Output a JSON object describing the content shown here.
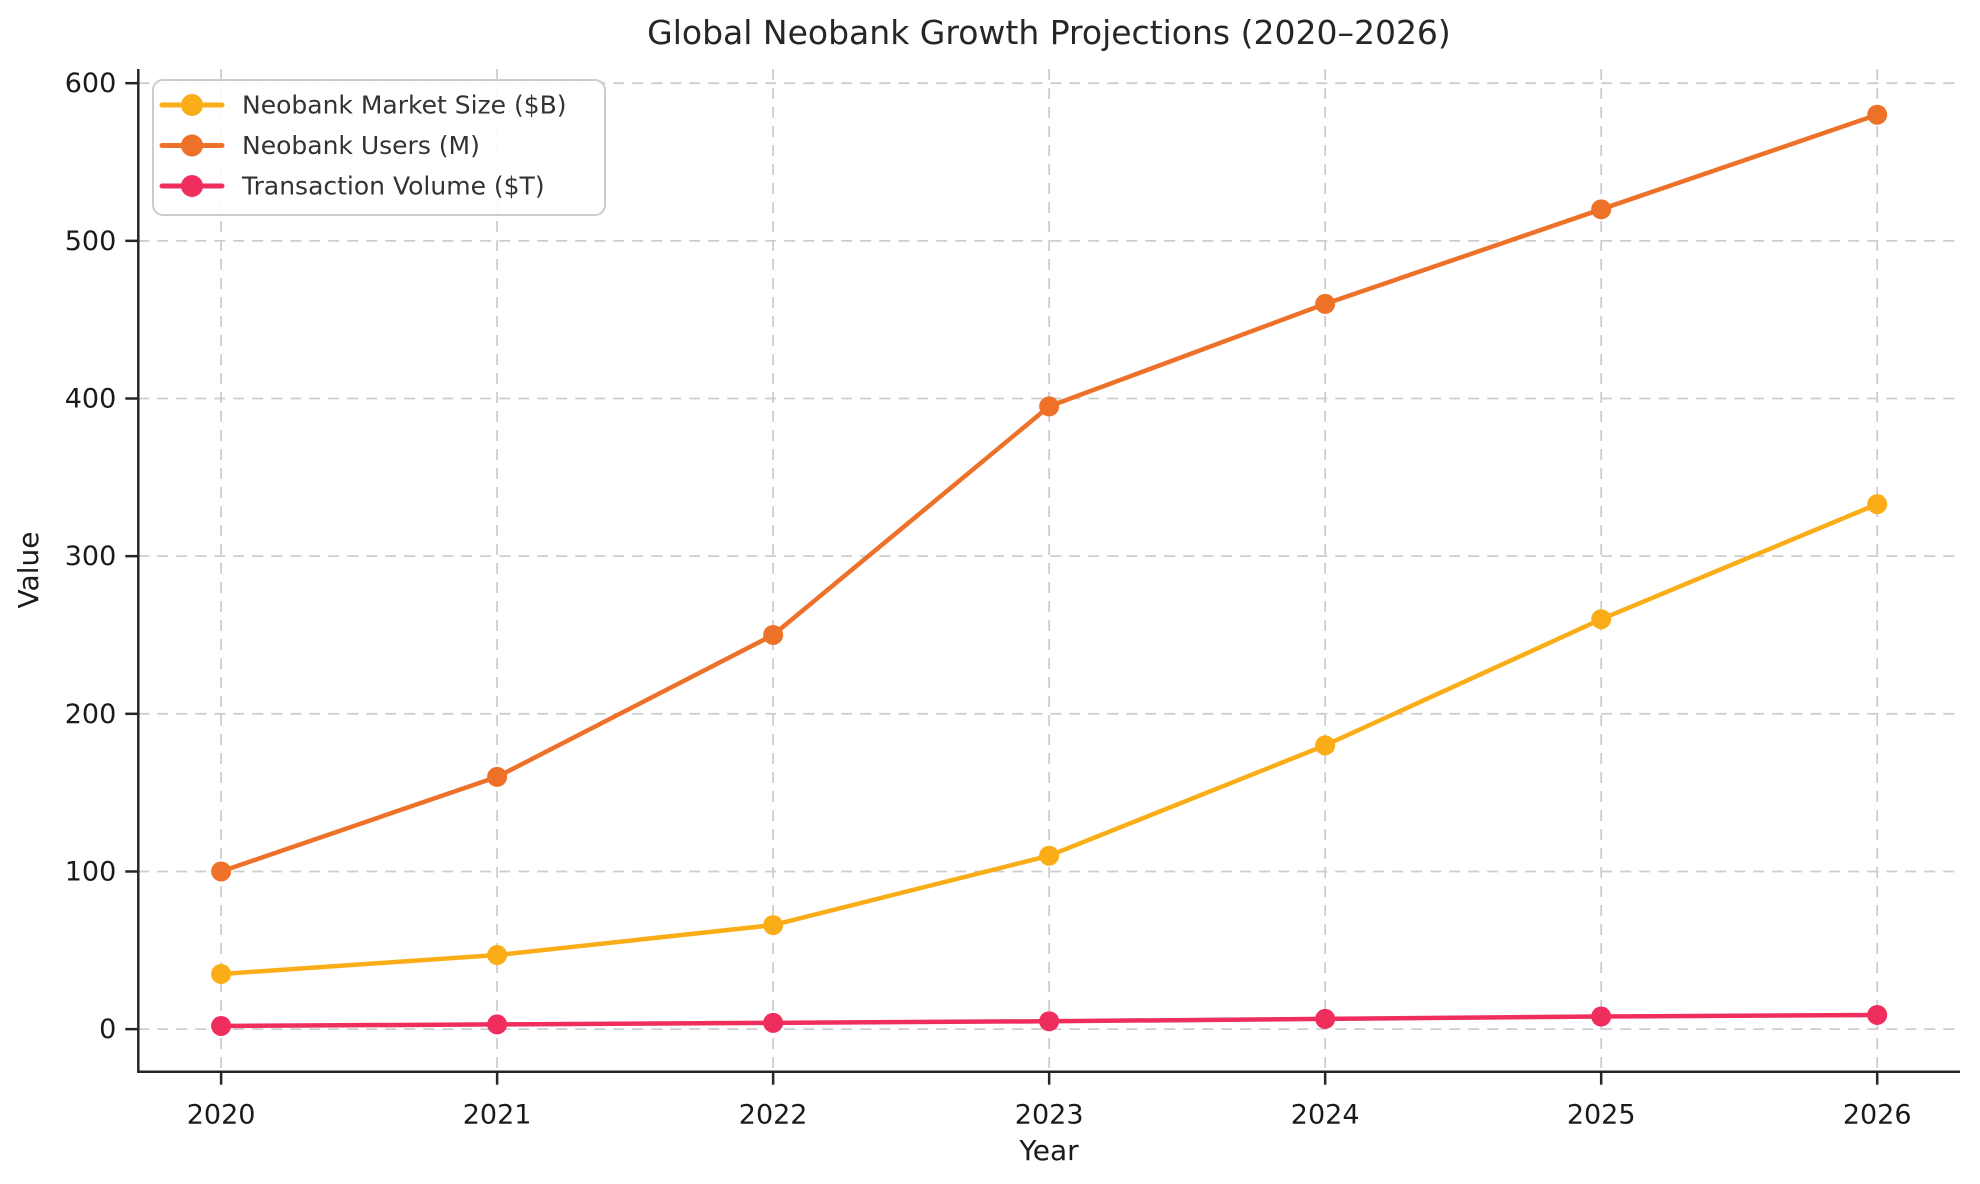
{
  "page": {
    "background": "#ffffff"
  },
  "chart_data": {
    "type": "line",
    "title": "Global Neobank Growth Projections (2020–2026)",
    "xlabel": "Year",
    "ylabel": "Value",
    "categories": [
      2020,
      2021,
      2022,
      2023,
      2024,
      2025,
      2026
    ],
    "series": [
      {
        "name": "Neobank Market Size ($B)",
        "color": "#FBAD18",
        "values": [
          35,
          47,
          66,
          110,
          180,
          260,
          333
        ]
      },
      {
        "name": "Neobank Users (M)",
        "color": "#ED7129",
        "values": [
          100,
          160,
          250,
          395,
          460,
          520,
          580
        ]
      },
      {
        "name": "Transaction Volume ($T)",
        "color": "#F02E5E",
        "values": [
          2,
          3,
          4,
          5,
          6.5,
          8,
          9
        ]
      }
    ],
    "y_ticks": [
      0,
      100,
      200,
      300,
      400,
      500,
      600
    ],
    "ylim": [
      -27,
      609
    ],
    "x_pad_years": 0.3,
    "grid": true,
    "grid_style": "dashed",
    "legend_position": "upper-left",
    "colors": {
      "axis": "#262626",
      "text": "#1a1a1a",
      "grid": "#cdcdcd",
      "legend_border": "#cccccc",
      "legend_fill": "#ffffff"
    }
  }
}
